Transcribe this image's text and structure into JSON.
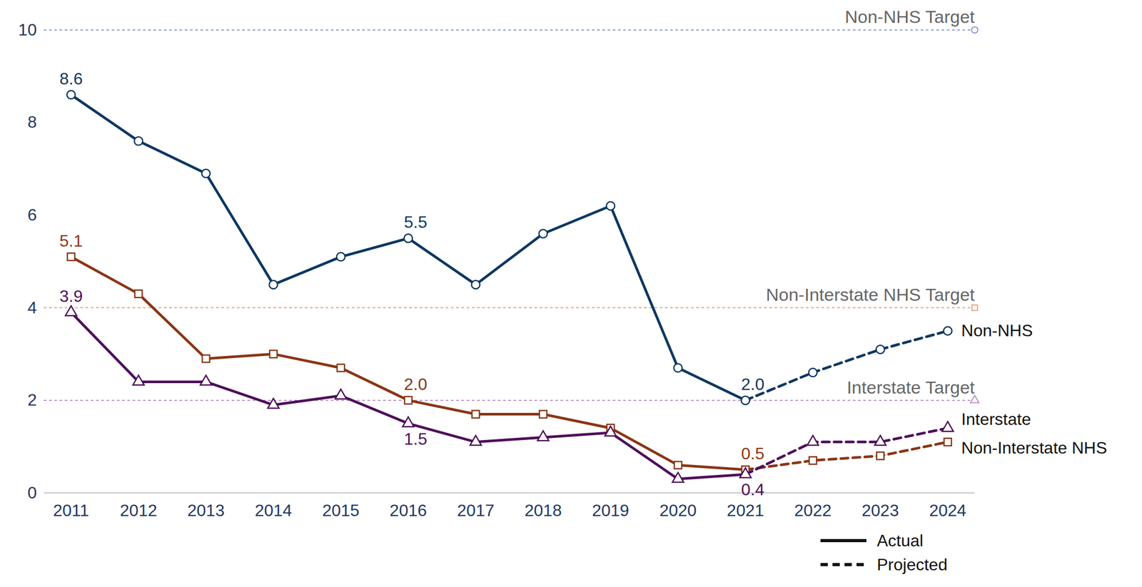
{
  "chart_data": {
    "type": "line",
    "x": [
      2011,
      2012,
      2013,
      2014,
      2015,
      2016,
      2017,
      2018,
      2019,
      2020,
      2021,
      2022,
      2023,
      2024
    ],
    "xlim": [
      2010.6,
      2024.4
    ],
    "xticks": [
      2011,
      2012,
      2013,
      2014,
      2015,
      2016,
      2017,
      2018,
      2019,
      2020,
      2021,
      2022,
      2023,
      2024
    ],
    "ylim": [
      0,
      10
    ],
    "yticks": [
      0,
      2,
      4,
      6,
      8,
      10
    ],
    "grid": false,
    "series": [
      {
        "name": "Non-NHS",
        "color": "#0d3760",
        "marker": "circle",
        "values": [
          8.6,
          7.6,
          6.9,
          4.5,
          5.1,
          5.5,
          4.5,
          5.6,
          6.2,
          2.7,
          2.0,
          null,
          null,
          null
        ],
        "projected_values": [
          null,
          null,
          null,
          null,
          null,
          null,
          null,
          null,
          null,
          null,
          2.0,
          2.6,
          3.1,
          3.5
        ]
      },
      {
        "name": "Non-Interstate NHS",
        "color": "#8a3514",
        "marker": "square",
        "values": [
          5.1,
          4.3,
          2.9,
          3.0,
          2.7,
          2.0,
          1.7,
          1.7,
          1.4,
          0.6,
          0.5,
          null,
          null,
          null
        ],
        "projected_values": [
          null,
          null,
          null,
          null,
          null,
          null,
          null,
          null,
          null,
          null,
          0.5,
          0.7,
          0.8,
          1.1
        ]
      },
      {
        "name": "Interstate",
        "color": "#4e0f5a",
        "marker": "triangle",
        "values": [
          3.9,
          2.4,
          2.4,
          1.9,
          2.1,
          1.5,
          1.1,
          1.2,
          1.3,
          0.3,
          0.4,
          null,
          null,
          null
        ],
        "projected_values": [
          null,
          null,
          null,
          null,
          null,
          null,
          null,
          null,
          null,
          null,
          0.4,
          1.1,
          1.1,
          1.4
        ]
      }
    ],
    "targets": [
      {
        "label": "Non-NHS Target",
        "value": 10,
        "color": "#8096c8",
        "marker": "circle"
      },
      {
        "label": "Non-Interstate NHS Target",
        "value": 4,
        "color": "#e8a07a",
        "marker": "square"
      },
      {
        "label": "Interstate Target",
        "value": 2,
        "color": "#b890c8",
        "marker": "triangle"
      }
    ],
    "annotations": [
      {
        "series": "Non-NHS",
        "x": 2011,
        "text": "8.6"
      },
      {
        "series": "Non-NHS",
        "x": 2016,
        "text": "5.5"
      },
      {
        "series": "Non-NHS",
        "x": 2021,
        "text": "2.0"
      },
      {
        "series": "Non-Interstate NHS",
        "x": 2011,
        "text": "5.1"
      },
      {
        "series": "Non-Interstate NHS",
        "x": 2016,
        "text": "2.0"
      },
      {
        "series": "Non-Interstate NHS",
        "x": 2021,
        "text": "0.5"
      },
      {
        "series": "Interstate",
        "x": 2011,
        "text": "3.9"
      },
      {
        "series": "Interstate",
        "x": 2016,
        "text": "1.5"
      },
      {
        "series": "Interstate",
        "x": 2021,
        "text": "0.4"
      }
    ],
    "line_style_legend": [
      {
        "label": "Actual",
        "line_style": "solid"
      },
      {
        "label": "Projected",
        "line_style": "dashed"
      }
    ]
  }
}
